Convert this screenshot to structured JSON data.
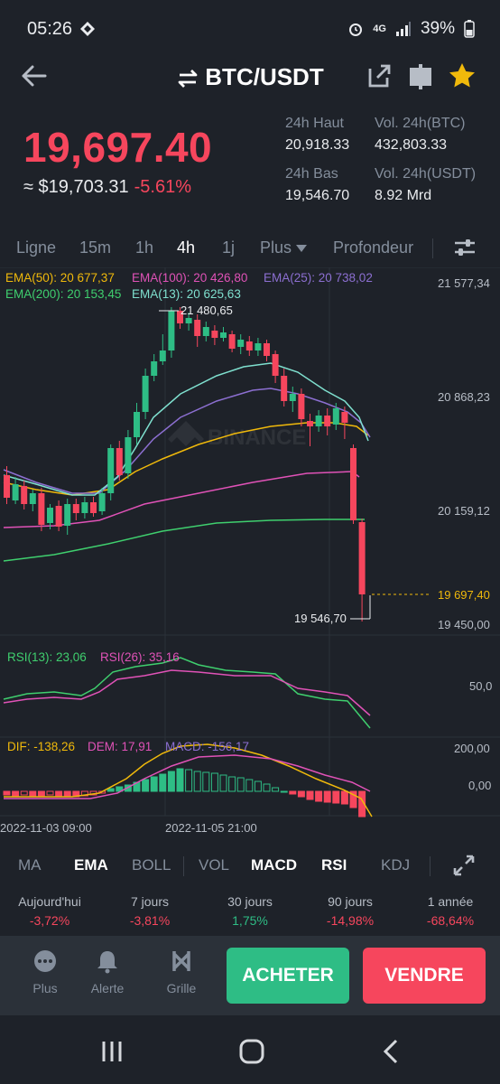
{
  "status_bar": {
    "time": "05:26",
    "network": "4G",
    "battery": "39%"
  },
  "header": {
    "pair": "BTC/USDT"
  },
  "ticker": {
    "last_price": "19,697.40",
    "converted_price": "≈ $19,703.31",
    "change_pct": "-5.61%",
    "high_label": "24h Haut",
    "high_value": "20,918.33",
    "low_label": "24h Bas",
    "low_value": "19,546.70",
    "vol_btc_label": "Vol. 24h(BTC)",
    "vol_btc_value": "432,803.33",
    "vol_usdt_label": "Vol. 24h(USDT)",
    "vol_usdt_value": "8.92 Mrd"
  },
  "tabs": {
    "line": "Ligne",
    "m15": "15m",
    "h1": "1h",
    "h4": "4h",
    "d1": "1j",
    "more": "Plus",
    "depth": "Profondeur"
  },
  "chart": {
    "ema50": "EMA(50): 20 677,37",
    "ema100": "EMA(100): 20 426,80",
    "ema25": "EMA(25): 20 738,02",
    "ema200": "EMA(200): 20 153,45",
    "ema13": "EMA(13): 20 625,63",
    "price_axis": [
      "21 577,34",
      "20 868,23",
      "20 159,12",
      "19 450,00"
    ],
    "current_price_tag": "19 697,40",
    "high_marker": "21 480,65",
    "low_marker": "19 546,70",
    "watermark": "BINANCE",
    "rsi13": "RSI(13): 23,06",
    "rsi26": "RSI(26): 35,16",
    "rsi_axis": "50,0",
    "dif": "DIF: -138,26",
    "dem": "DEM: 17,91",
    "macd": "MACD: -156,17",
    "macd_axis": [
      "200,00",
      "0,00"
    ],
    "time_axis": [
      "2022-11-03 09:00",
      "2022-11-05 21:00"
    ]
  },
  "indicators": {
    "ma": "MA",
    "ema": "EMA",
    "boll": "BOLL",
    "vol": "VOL",
    "macd": "MACD",
    "rsi": "RSI",
    "kdj": "KDJ"
  },
  "performance": [
    {
      "label": "Aujourd'hui",
      "value": "-3,72%"
    },
    {
      "label": "7 jours",
      "value": "-3,81%"
    },
    {
      "label": "30 jours",
      "value": "1,75%"
    },
    {
      "label": "90 jours",
      "value": "-14,98%"
    },
    {
      "label": "1 année",
      "value": "-68,64%"
    }
  ],
  "bottom": {
    "more": "Plus",
    "alert": "Alerte",
    "grid": "Grille",
    "buy": "ACHETER",
    "sell": "VENDRE"
  },
  "colors": {
    "up": "#2ebd85",
    "down": "#f6465d",
    "ema50": "#f0b90b",
    "ema100": "#e052b7",
    "ema25": "#8c6fd1",
    "ema200": "#3fcf6e",
    "ema13": "#7fe0cf"
  }
}
